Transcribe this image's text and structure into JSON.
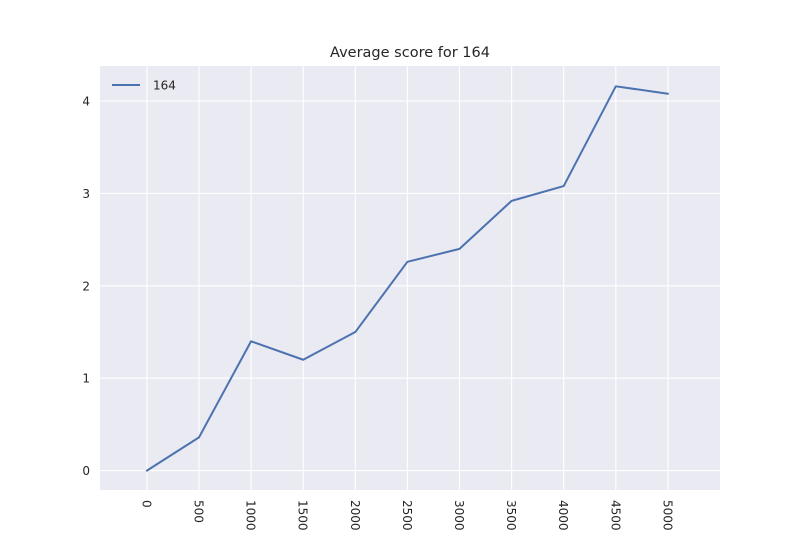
{
  "chart_data": {
    "type": "line",
    "title": "Average score for 164",
    "xlabel": "",
    "ylabel": "",
    "x": [
      0,
      500,
      1000,
      1500,
      2000,
      2500,
      3000,
      3500,
      4000,
      4500,
      5000
    ],
    "x_tick_labels": [
      "0",
      "500",
      "1000",
      "1500",
      "2000",
      "2500",
      "3000",
      "3500",
      "4000",
      "4500",
      "5000"
    ],
    "y_ticks": [
      0,
      1,
      2,
      3,
      4
    ],
    "y_tick_labels": [
      "0",
      "1",
      "2",
      "3",
      "4"
    ],
    "xlim": [
      -450,
      5500
    ],
    "ylim": [
      -0.21,
      4.38
    ],
    "grid": true,
    "legend": {
      "position": "top-left",
      "entries": [
        "164"
      ]
    },
    "series": [
      {
        "name": "164",
        "color": "#4c72b0",
        "values": [
          0.0,
          0.36,
          1.4,
          1.2,
          1.5,
          2.26,
          2.4,
          2.92,
          3.08,
          4.16,
          4.08
        ]
      }
    ],
    "style": {
      "plot_background": "#eaeaf2",
      "grid_color": "#ffffff",
      "text_color": "#262626"
    }
  }
}
